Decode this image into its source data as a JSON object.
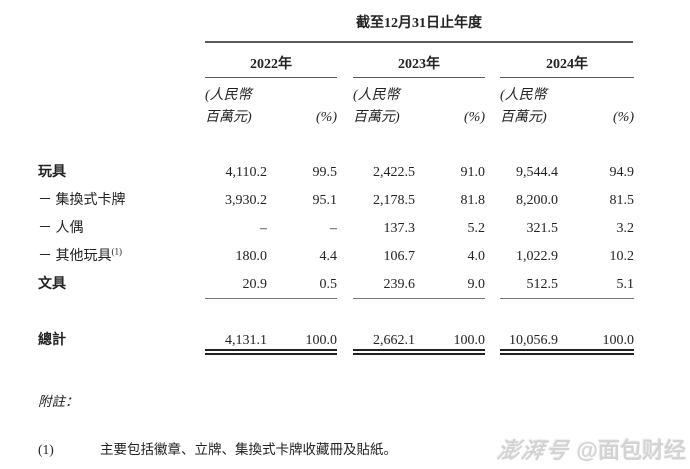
{
  "colors": {
    "text": "#222222",
    "rule": "#5a5a5a",
    "watermark": "#d3d3d3"
  },
  "table": {
    "caption": "截至12月31日止年度",
    "year_columns": [
      {
        "year": "2022年",
        "unit_line1": "(人民幣",
        "unit_line2": "百萬元)",
        "pct_label": "(%)"
      },
      {
        "year": "2023年",
        "unit_line1": "(人民幣",
        "unit_line2": "百萬元)",
        "pct_label": "(%)"
      },
      {
        "year": "2024年",
        "unit_line1": "(人民幣",
        "unit_line2": "百萬元)",
        "pct_label": "(%)"
      }
    ],
    "rows": [
      {
        "label": "玩具",
        "values": [
          "4,110.2",
          "99.5",
          "2,422.5",
          "91.0",
          "9,544.4",
          "94.9"
        ]
      },
      {
        "label": "－ 集換式卡牌",
        "values": [
          "3,930.2",
          "95.1",
          "2,178.5",
          "81.8",
          "8,200.0",
          "81.5"
        ]
      },
      {
        "label": "－ 人偶",
        "values": [
          "–",
          "–",
          "137.3",
          "5.2",
          "321.5",
          "3.2"
        ]
      },
      {
        "label": "－ 其他玩具",
        "sup": "(1)",
        "values": [
          "180.0",
          "4.4",
          "106.7",
          "4.0",
          "1,022.9",
          "10.2"
        ]
      },
      {
        "label": "文具",
        "values": [
          "20.9",
          "0.5",
          "239.6",
          "9.0",
          "512.5",
          "5.1"
        ]
      }
    ],
    "total_row": {
      "label": "總計",
      "values": [
        "4,131.1",
        "100.0",
        "2,662.1",
        "100.0",
        "10,056.9",
        "100.0"
      ]
    }
  },
  "notes": {
    "heading": "附註：",
    "items": [
      {
        "marker": "(1)",
        "text": "主要包括徽章、立牌、集換式卡牌收藏冊及貼紙。"
      }
    ]
  },
  "watermark": {
    "logo": "澎湃号",
    "handle": "@面包财经"
  }
}
